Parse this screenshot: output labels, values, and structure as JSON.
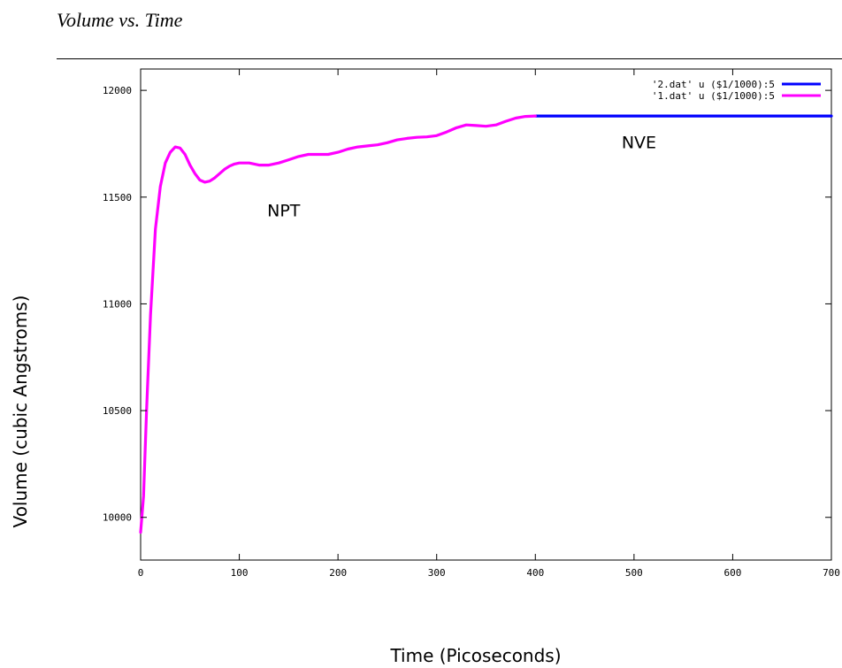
{
  "document": {
    "title": "Volume vs. Time"
  },
  "chart_data": {
    "type": "line",
    "title": "",
    "xlabel": "Time (Picoseconds)",
    "ylabel": "Volume (cubic Angstroms)",
    "xlim": [
      0,
      700
    ],
    "ylim": [
      9800,
      12100
    ],
    "xticks": [
      0,
      100,
      200,
      300,
      400,
      500,
      600,
      700
    ],
    "xtick_labels": [
      "0",
      "100",
      "200",
      "300",
      "400",
      "500",
      "600",
      "700"
    ],
    "yticks": [
      10000,
      10500,
      11000,
      11500,
      12000
    ],
    "ytick_labels": [
      "10000",
      "10500",
      "11000",
      "11500",
      "12000"
    ],
    "grid": false,
    "legend_position": "top-right",
    "series": [
      {
        "name": "'2.dat' u ($1/1000):5",
        "color": "#0000ff",
        "x": [
          400,
          700
        ],
        "y": [
          11880,
          11880
        ]
      },
      {
        "name": "'1.dat' u ($1/1000):5",
        "color": "#ff00ff",
        "x": [
          0,
          3,
          6,
          10,
          15,
          20,
          25,
          30,
          35,
          40,
          45,
          50,
          55,
          60,
          65,
          70,
          75,
          80,
          85,
          90,
          95,
          100,
          110,
          120,
          130,
          140,
          150,
          160,
          170,
          180,
          190,
          200,
          210,
          220,
          230,
          240,
          250,
          260,
          270,
          280,
          290,
          300,
          310,
          320,
          330,
          340,
          350,
          360,
          370,
          380,
          390,
          400
        ],
        "y": [
          9930,
          10100,
          10500,
          10950,
          11350,
          11550,
          11660,
          11710,
          11735,
          11730,
          11700,
          11650,
          11610,
          11580,
          11570,
          11575,
          11590,
          11610,
          11630,
          11645,
          11655,
          11660,
          11660,
          11650,
          11650,
          11660,
          11675,
          11690,
          11700,
          11700,
          11700,
          11710,
          11725,
          11735,
          11740,
          11745,
          11755,
          11768,
          11775,
          11780,
          11782,
          11788,
          11805,
          11825,
          11838,
          11835,
          11832,
          11838,
          11855,
          11870,
          11878,
          11880
        ]
      }
    ],
    "annotations": [
      {
        "text": "NPT",
        "x": 145,
        "y": 11410
      },
      {
        "text": "NVE",
        "x": 505,
        "y": 11730
      }
    ]
  }
}
